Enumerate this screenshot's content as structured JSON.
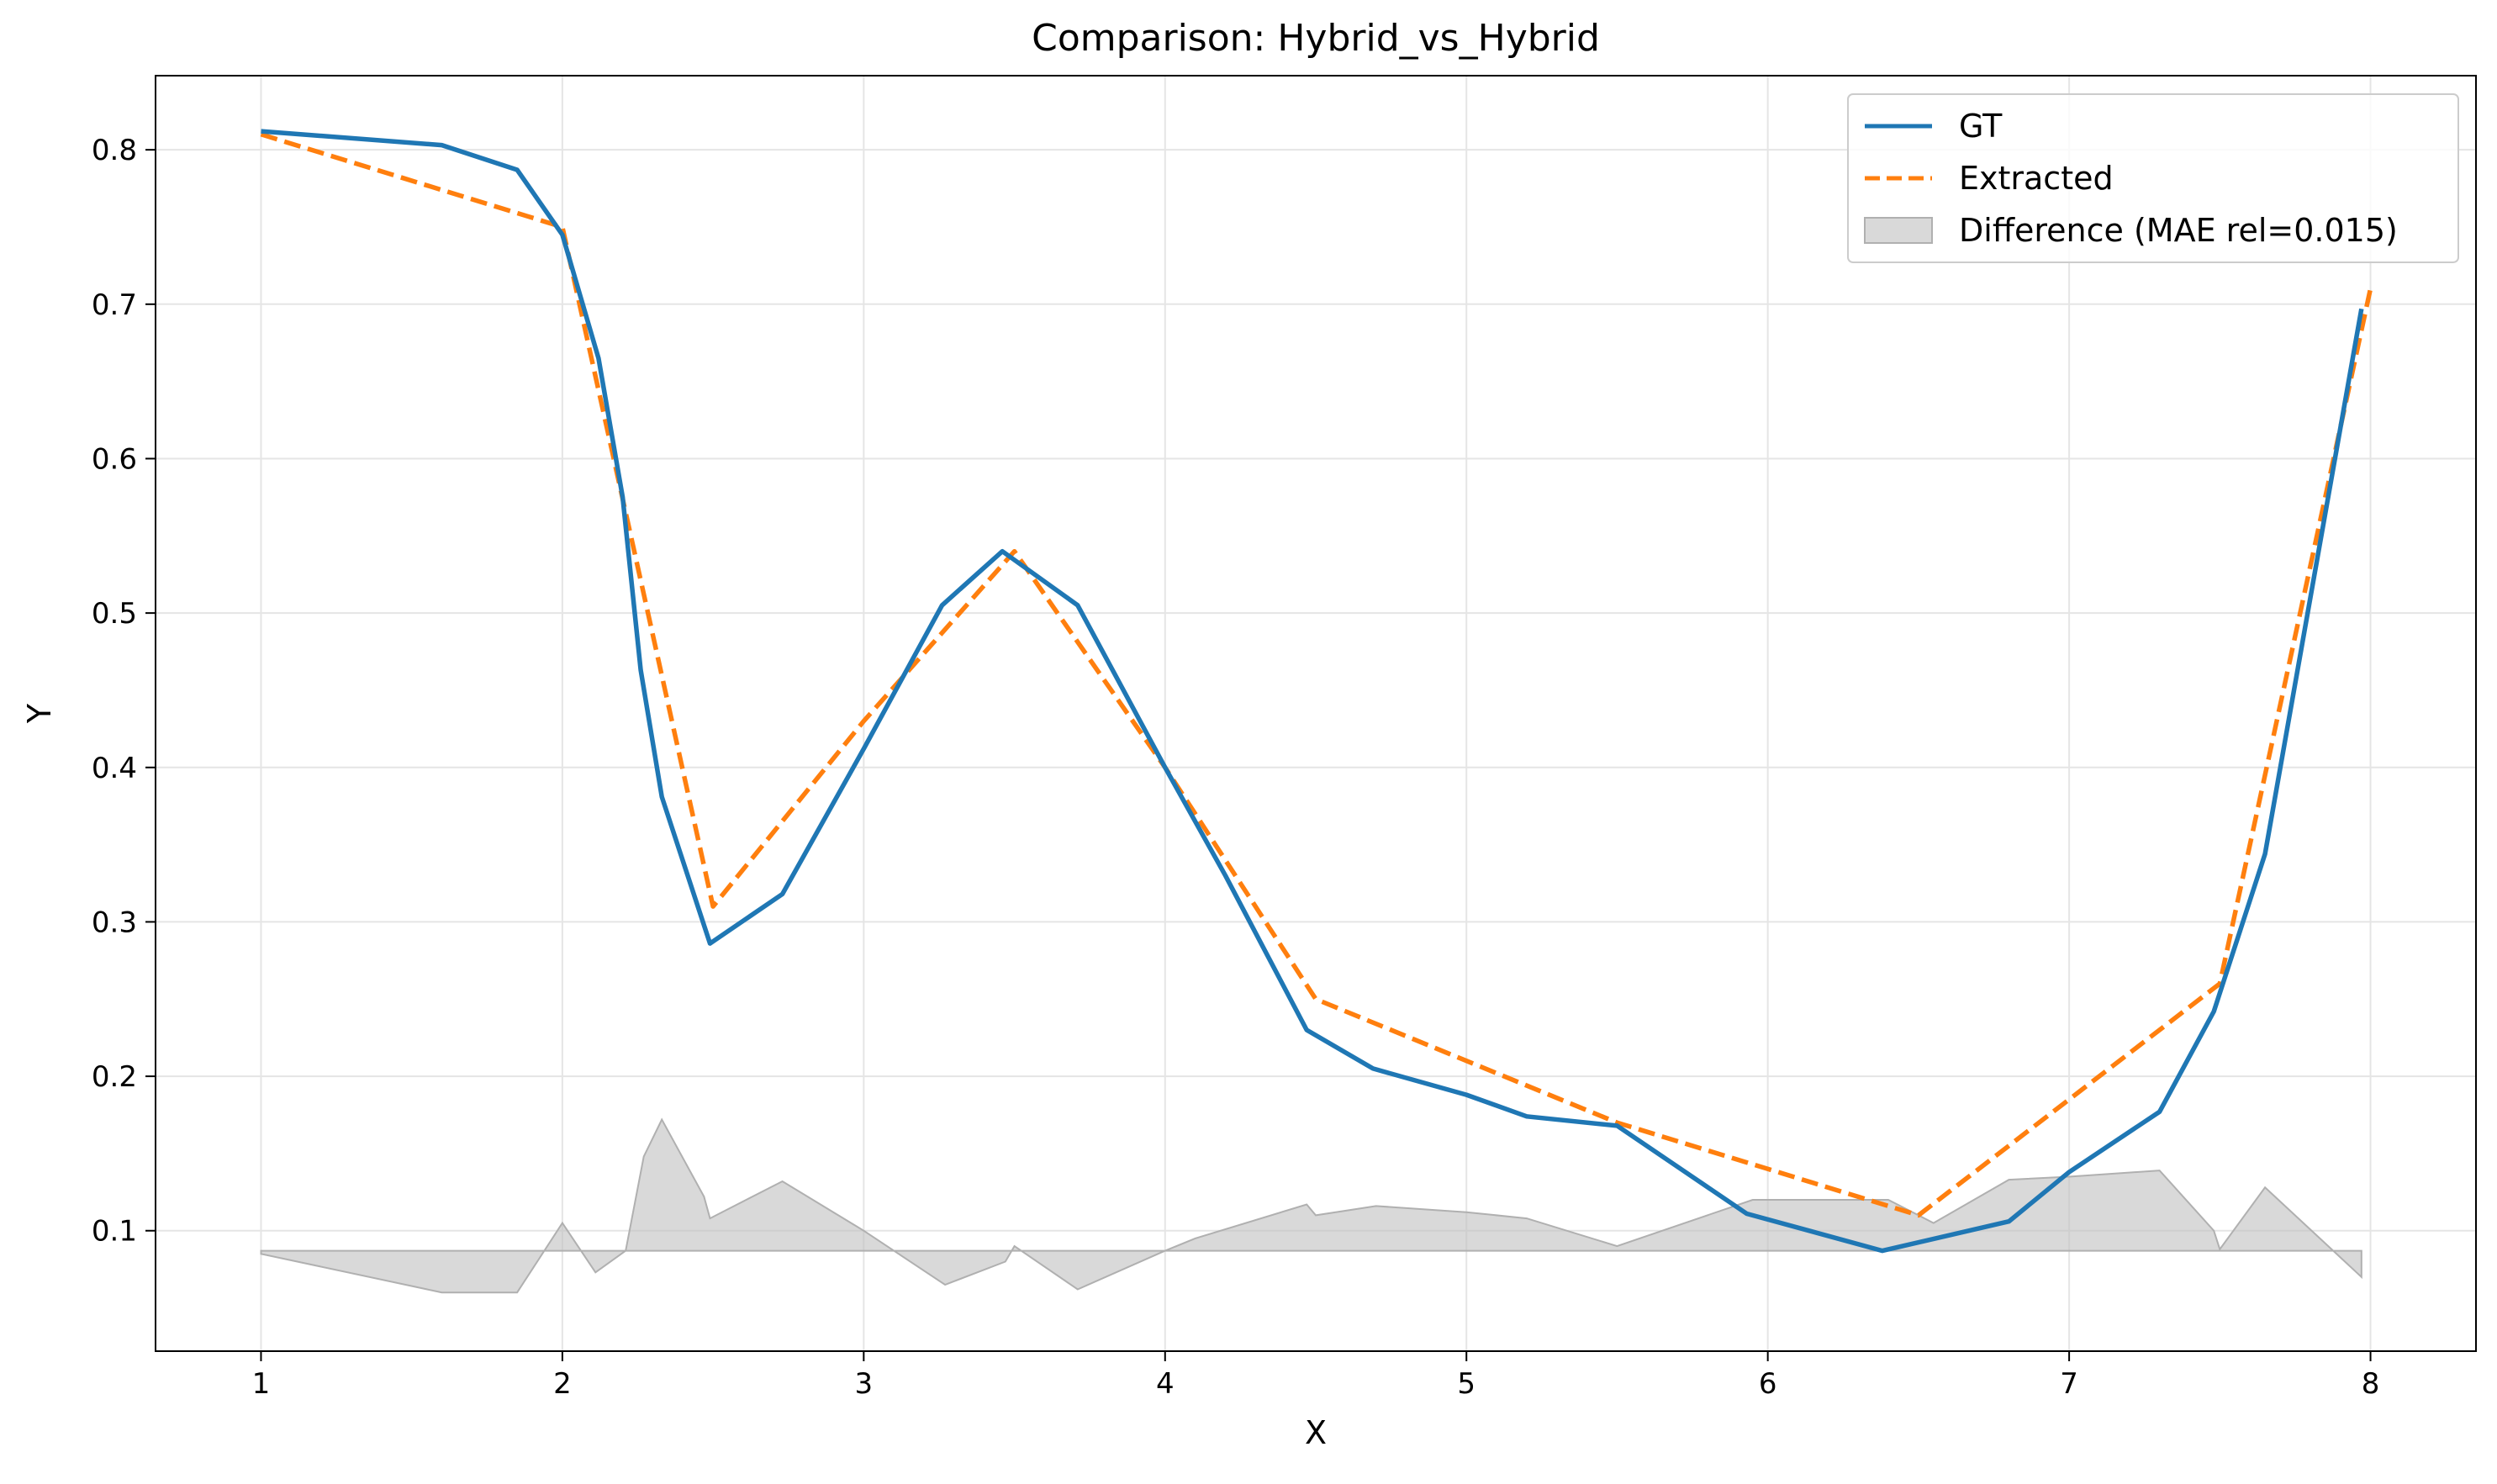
{
  "chart_data": {
    "type": "line",
    "title": "Comparison: Hybrid_vs_Hybrid",
    "xlabel": "X",
    "ylabel": "Y",
    "xlim": [
      0.65,
      8.35
    ],
    "ylim": [
      0.022,
      0.848
    ],
    "xticks": [
      1,
      2,
      3,
      4,
      5,
      6,
      7,
      8
    ],
    "yticks": [
      0.1,
      0.2,
      0.3,
      0.4,
      0.5,
      0.6,
      0.7,
      0.8
    ],
    "grid": true,
    "legend_position": "top-right",
    "series": [
      {
        "name": "GT",
        "style": "solid",
        "color": "#1f77b4",
        "x": [
          1.0,
          1.6,
          1.85,
          2.0,
          2.12,
          2.2,
          2.26,
          2.33,
          2.49,
          2.73,
          3.0,
          3.26,
          3.46,
          3.71,
          4.0,
          4.2,
          4.47,
          4.69,
          5.0,
          5.2,
          5.5,
          5.93,
          6.38,
          6.8,
          7.0,
          7.3,
          7.48,
          7.65,
          7.97
        ],
        "y": [
          0.812,
          0.803,
          0.787,
          0.745,
          0.665,
          0.575,
          0.463,
          0.381,
          0.286,
          0.318,
          0.412,
          0.505,
          0.54,
          0.505,
          0.4,
          0.33,
          0.23,
          0.205,
          0.188,
          0.174,
          0.168,
          0.111,
          0.087,
          0.106,
          0.138,
          0.177,
          0.242,
          0.344,
          0.697
        ]
      },
      {
        "name": "Extracted",
        "style": "dashed",
        "color": "#ff7f0e",
        "x": [
          1.0,
          2.0,
          2.5,
          3.0,
          3.5,
          4.0,
          4.5,
          5.0,
          5.5,
          6.0,
          6.5,
          7.0,
          7.5,
          8.0
        ],
        "y": [
          0.81,
          0.75,
          0.31,
          0.43,
          0.54,
          0.4,
          0.25,
          0.21,
          0.17,
          0.14,
          0.11,
          0.185,
          0.26,
          0.71
        ]
      }
    ],
    "difference": {
      "name": "Difference (MAE rel=0.015)",
      "color": "#bfbfbf",
      "baseline": 0.087,
      "x": [
        1.0,
        1.6,
        1.85,
        2.0,
        2.11,
        2.21,
        2.27,
        2.33,
        2.47,
        2.49,
        2.73,
        3.0,
        3.27,
        3.47,
        3.5,
        3.71,
        4.0,
        4.1,
        4.47,
        4.5,
        4.7,
        5.0,
        5.2,
        5.5,
        5.95,
        6.4,
        6.55,
        6.8,
        7.0,
        7.3,
        7.48,
        7.5,
        7.65,
        7.97
      ],
      "y": [
        0.085,
        0.06,
        0.06,
        0.105,
        0.073,
        0.087,
        0.148,
        0.172,
        0.122,
        0.108,
        0.132,
        0.1,
        0.065,
        0.08,
        0.09,
        0.062,
        0.087,
        0.095,
        0.117,
        0.11,
        0.116,
        0.112,
        0.108,
        0.09,
        0.12,
        0.12,
        0.105,
        0.133,
        0.135,
        0.139,
        0.1,
        0.088,
        0.128,
        0.07
      ]
    }
  }
}
